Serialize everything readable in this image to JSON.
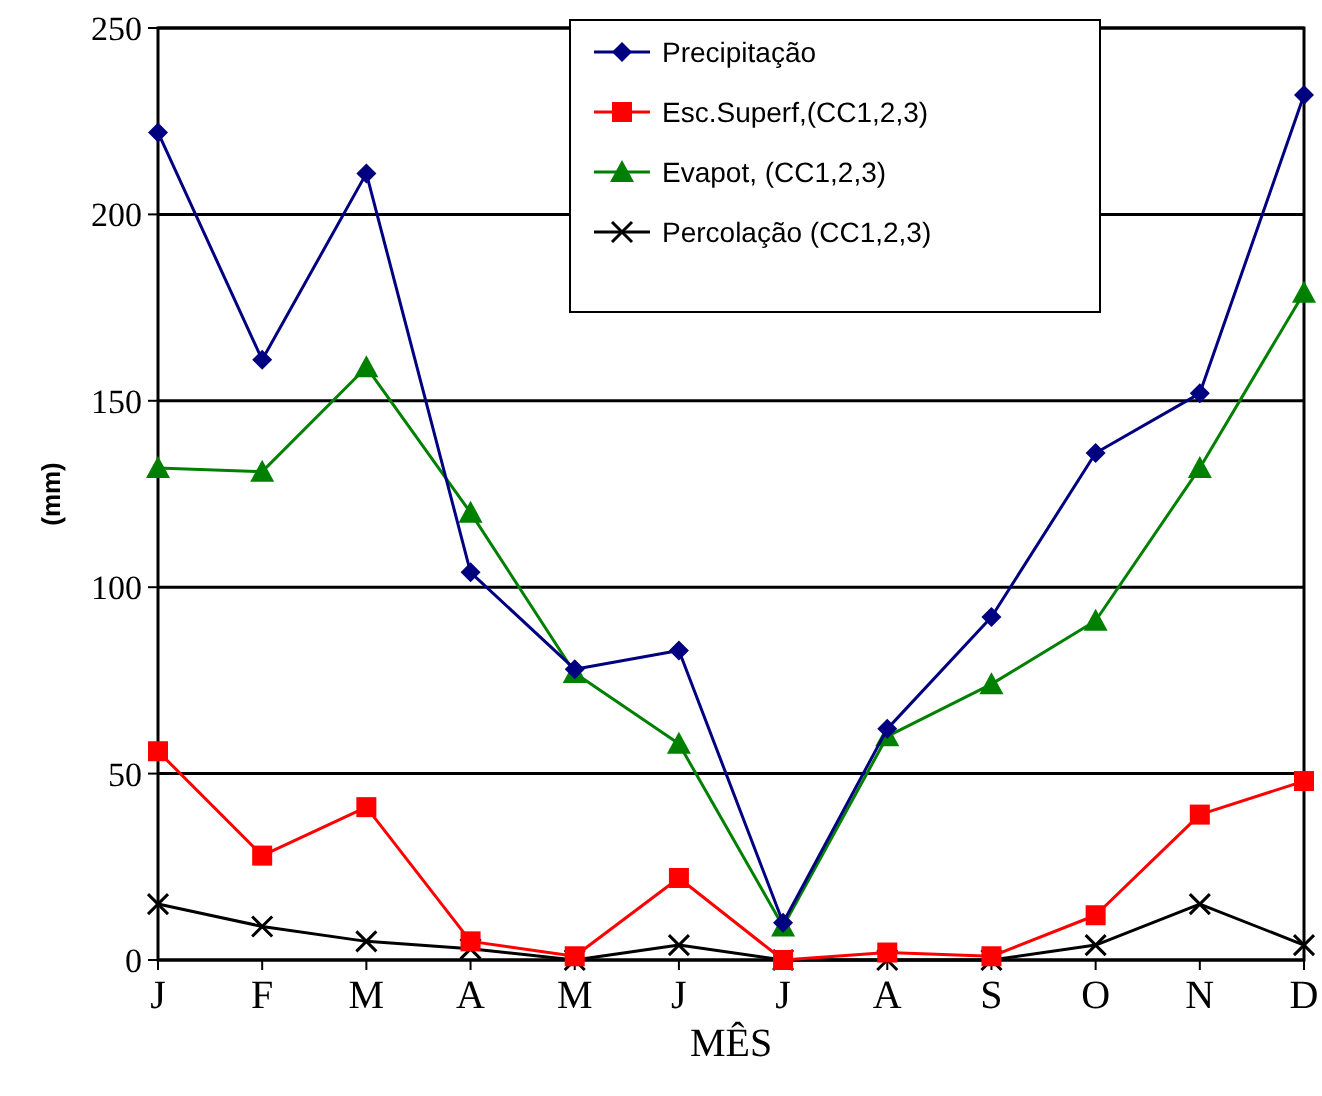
{
  "chart_data": {
    "type": "line",
    "xlabel": "MÊS",
    "ylabel": "(mm)",
    "categories": [
      "J",
      "F",
      "M",
      "A",
      "M",
      "J",
      "J",
      "A",
      "S",
      "O",
      "N",
      "D"
    ],
    "ylim": [
      0,
      250
    ],
    "yticks": [
      0,
      50,
      100,
      150,
      200,
      250
    ],
    "grid": "y",
    "legend": "top right",
    "series": [
      {
        "name": "Precipitação",
        "color": "#000080",
        "marker": "diamond",
        "values": [
          222,
          161,
          211,
          104,
          78,
          83,
          10,
          62,
          92,
          136,
          152,
          232
        ]
      },
      {
        "name": "Esc.Superf,(CC1,2,3)",
        "color": "#ff0000",
        "marker": "square",
        "values": [
          56,
          28,
          41,
          5,
          1,
          22,
          0,
          2,
          1,
          12,
          39,
          48
        ]
      },
      {
        "name": "Evapot, (CC1,2,3)",
        "color": "#008000",
        "marker": "triangle",
        "values": [
          132,
          131,
          159,
          120,
          77,
          58,
          9,
          60,
          74,
          91,
          132,
          179
        ]
      },
      {
        "name": "Percolação (CC1,2,3)",
        "color": "#000000",
        "marker": "cross",
        "values": [
          15,
          9,
          5,
          3,
          0,
          4,
          0,
          0,
          0,
          4,
          15,
          4
        ]
      }
    ]
  }
}
